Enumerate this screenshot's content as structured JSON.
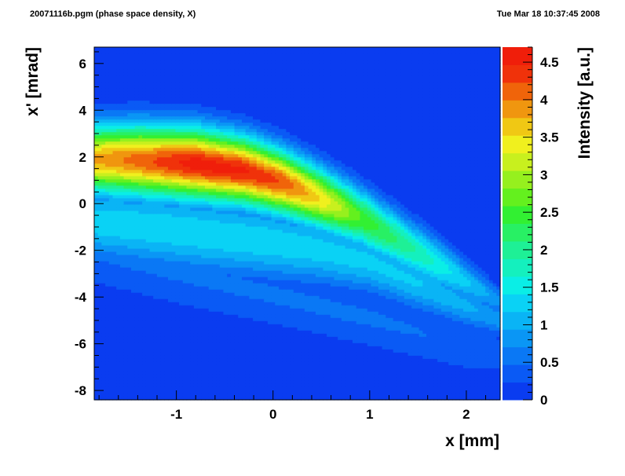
{
  "header": {
    "left": "20071116b.pgm (phase space density, X)",
    "right": "Tue Mar 18 10:37:45 2008"
  },
  "chart_data": {
    "type": "heatmap",
    "xlabel": "x [mm]",
    "ylabel": "x' [mrad]",
    "zlabel": "Intensity [a.u.]",
    "xlim": [
      -1.85,
      2.35
    ],
    "ylim": [
      -8.4,
      6.7
    ],
    "zlim": [
      0,
      4.7
    ],
    "x_ticks": [
      -1,
      0,
      1,
      2
    ],
    "y_ticks": [
      -8,
      -6,
      -4,
      -2,
      0,
      2,
      4,
      6
    ],
    "z_ticks": [
      0,
      0.5,
      1,
      1.5,
      2,
      2.5,
      3,
      3.5,
      4,
      4.5
    ],
    "x_tick_labels": [
      "-1",
      "0",
      "1",
      "2"
    ],
    "y_tick_labels": [
      "-8",
      "-6",
      "-4",
      "-2",
      "0",
      "2",
      "4",
      "6"
    ],
    "z_tick_labels": [
      "0",
      "0.5",
      "1",
      "1.5",
      "2",
      "2.5",
      "3",
      "3.5",
      "4",
      "4.5"
    ],
    "background_level": 0.2,
    "colors": [
      "#0a3cf0",
      "#0a5af5",
      "#0a78f5",
      "#0a96f5",
      "#0ab4f5",
      "#0ad2f5",
      "#0aeee6",
      "#14f0be",
      "#1ef096",
      "#28f064",
      "#32f032",
      "#64f01e",
      "#96f01e",
      "#c8f01e",
      "#f0f01e",
      "#f0c814",
      "#f0960f",
      "#f0640a",
      "#f0320a",
      "#f01e0a"
    ],
    "bands": [
      {
        "name": "upper-lobe",
        "core": [
          [
            -1.85,
            1.9
          ],
          [
            -1.4,
            1.85
          ],
          [
            -0.8,
            1.7
          ],
          [
            -0.3,
            1.4
          ],
          [
            0.1,
            0.9
          ],
          [
            0.5,
            0.2
          ],
          [
            0.9,
            -0.6
          ],
          [
            1.3,
            -1.6
          ],
          [
            1.7,
            -2.6
          ],
          [
            2.1,
            -3.6
          ],
          [
            2.35,
            -4.2
          ]
        ],
        "width": [
          1.0,
          1.05,
          1.05,
          1.0,
          0.95,
          0.9,
          0.85,
          0.8,
          0.75,
          0.55,
          0.4
        ],
        "peak": [
          3.8,
          4.1,
          4.6,
          4.5,
          4.2,
          3.5,
          2.6,
          2.1,
          1.6,
          1.1,
          0.8
        ]
      },
      {
        "name": "lower-lobe",
        "core": [
          [
            -1.85,
            -0.8
          ],
          [
            -1.3,
            -1.0
          ],
          [
            -0.7,
            -1.3
          ],
          [
            -0.1,
            -1.6
          ],
          [
            0.5,
            -2.0
          ],
          [
            1.0,
            -2.5
          ],
          [
            1.5,
            -3.4
          ],
          [
            2.0,
            -4.4
          ],
          [
            2.35,
            -5.0
          ]
        ],
        "width": [
          1.1,
          1.15,
          1.15,
          1.1,
          1.0,
          0.9,
          0.8,
          0.6,
          0.45
        ],
        "peak": [
          1.3,
          1.35,
          1.35,
          1.35,
          1.3,
          1.25,
          1.2,
          1.0,
          0.85
        ]
      },
      {
        "name": "diffuse-tail",
        "core": [
          [
            -1.85,
            -2.0
          ],
          [
            -1.0,
            -2.9
          ],
          [
            0.0,
            -3.9
          ],
          [
            1.0,
            -4.9
          ],
          [
            2.0,
            -6.1
          ],
          [
            2.35,
            -6.5
          ]
        ],
        "width": [
          1.1,
          1.1,
          1.0,
          0.95,
          0.8,
          0.6
        ],
        "peak": [
          0.5,
          0.5,
          0.5,
          0.5,
          0.45,
          0.4
        ]
      }
    ]
  }
}
